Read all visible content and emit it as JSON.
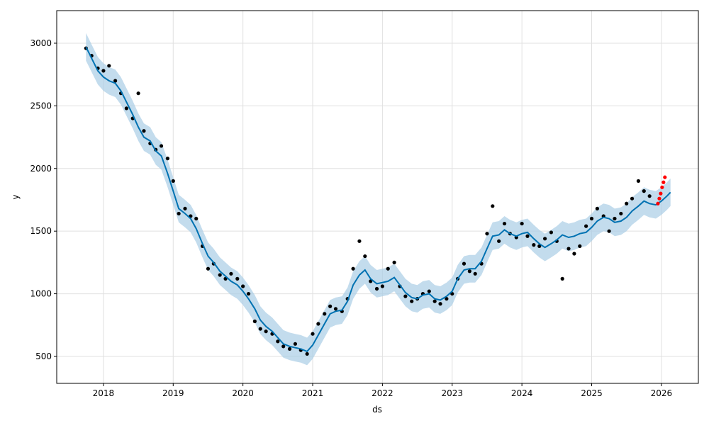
{
  "chart_data": {
    "type": "forecast",
    "xlabel": "ds",
    "ylabel": "y",
    "xlim": [
      2017.33,
      2026.53
    ],
    "xticks": [
      2018,
      2019,
      2020,
      2021,
      2022,
      2023,
      2024,
      2025,
      2026
    ],
    "ylim": [
      285,
      3260
    ],
    "yticks": [
      500,
      1000,
      1500,
      2000,
      2500,
      3000
    ],
    "grid": true,
    "forecast": {
      "color": "#0072b2",
      "band_color": "#a9cde6",
      "x": [
        2017.75,
        2017.83,
        2017.92,
        2018,
        2018.08,
        2018.17,
        2018.25,
        2018.33,
        2018.42,
        2018.5,
        2018.58,
        2018.67,
        2018.75,
        2018.83,
        2018.92,
        2019,
        2019.08,
        2019.17,
        2019.25,
        2019.33,
        2019.42,
        2019.5,
        2019.58,
        2019.67,
        2019.75,
        2019.83,
        2019.92,
        2020,
        2020.08,
        2020.17,
        2020.25,
        2020.33,
        2020.42,
        2020.5,
        2020.58,
        2020.67,
        2020.75,
        2020.83,
        2020.92,
        2021,
        2021.08,
        2021.17,
        2021.25,
        2021.33,
        2021.42,
        2021.5,
        2021.58,
        2021.67,
        2021.75,
        2021.83,
        2021.92,
        2022,
        2022.08,
        2022.17,
        2022.25,
        2022.33,
        2022.42,
        2022.5,
        2022.58,
        2022.67,
        2022.75,
        2022.83,
        2022.92,
        2023,
        2023.08,
        2023.17,
        2023.25,
        2023.33,
        2023.42,
        2023.5,
        2023.58,
        2023.67,
        2023.75,
        2023.83,
        2023.92,
        2024,
        2024.08,
        2024.17,
        2024.25,
        2024.33,
        2024.42,
        2024.5,
        2024.58,
        2024.67,
        2024.75,
        2024.83,
        2024.92,
        2025,
        2025.08,
        2025.17,
        2025.25,
        2025.33,
        2025.42,
        2025.5,
        2025.58,
        2025.67,
        2025.75,
        2025.83,
        2025.92,
        2026,
        2026.08,
        2026.13
      ],
      "values": [
        2970,
        2880,
        2780,
        2730,
        2700,
        2680,
        2620,
        2530,
        2430,
        2330,
        2250,
        2220,
        2140,
        2100,
        1960,
        1820,
        1680,
        1640,
        1600,
        1520,
        1400,
        1300,
        1250,
        1180,
        1140,
        1100,
        1070,
        1020,
        960,
        880,
        790,
        740,
        700,
        650,
        600,
        580,
        570,
        560,
        540,
        590,
        670,
        760,
        840,
        860,
        870,
        940,
        1070,
        1150,
        1190,
        1120,
        1080,
        1090,
        1100,
        1130,
        1070,
        1010,
        970,
        960,
        990,
        1000,
        960,
        950,
        980,
        1020,
        1120,
        1190,
        1200,
        1200,
        1260,
        1360,
        1460,
        1470,
        1510,
        1480,
        1460,
        1480,
        1490,
        1440,
        1400,
        1370,
        1400,
        1430,
        1470,
        1450,
        1460,
        1480,
        1490,
        1530,
        1580,
        1610,
        1600,
        1570,
        1580,
        1610,
        1660,
        1700,
        1740,
        1720,
        1710,
        1740,
        1780,
        1810
      ],
      "lower": [
        2860,
        2770,
        2670,
        2620,
        2590,
        2570,
        2510,
        2420,
        2320,
        2220,
        2140,
        2110,
        2030,
        1990,
        1850,
        1710,
        1570,
        1530,
        1490,
        1410,
        1290,
        1190,
        1140,
        1070,
        1030,
        990,
        960,
        910,
        850,
        770,
        680,
        630,
        590,
        540,
        490,
        470,
        460,
        450,
        430,
        480,
        560,
        650,
        730,
        750,
        760,
        830,
        960,
        1040,
        1080,
        1010,
        970,
        980,
        990,
        1020,
        960,
        900,
        860,
        850,
        880,
        890,
        850,
        840,
        870,
        910,
        1010,
        1080,
        1090,
        1090,
        1150,
        1250,
        1350,
        1360,
        1400,
        1370,
        1350,
        1370,
        1380,
        1330,
        1290,
        1260,
        1290,
        1320,
        1360,
        1340,
        1350,
        1370,
        1380,
        1420,
        1470,
        1500,
        1490,
        1460,
        1470,
        1500,
        1550,
        1590,
        1630,
        1610,
        1600,
        1630,
        1670,
        1700
      ],
      "upper": [
        3080,
        2990,
        2890,
        2840,
        2810,
        2790,
        2730,
        2640,
        2540,
        2440,
        2360,
        2330,
        2250,
        2210,
        2070,
        1930,
        1790,
        1750,
        1710,
        1630,
        1510,
        1410,
        1360,
        1290,
        1250,
        1210,
        1180,
        1130,
        1070,
        990,
        900,
        850,
        810,
        760,
        710,
        690,
        680,
        670,
        650,
        700,
        780,
        870,
        950,
        970,
        980,
        1050,
        1180,
        1260,
        1300,
        1230,
        1190,
        1200,
        1210,
        1240,
        1180,
        1120,
        1080,
        1070,
        1100,
        1110,
        1070,
        1060,
        1090,
        1130,
        1230,
        1300,
        1310,
        1310,
        1370,
        1470,
        1570,
        1580,
        1620,
        1590,
        1570,
        1590,
        1600,
        1550,
        1510,
        1480,
        1510,
        1540,
        1580,
        1560,
        1570,
        1590,
        1600,
        1640,
        1690,
        1720,
        1710,
        1680,
        1690,
        1720,
        1770,
        1810,
        1850,
        1830,
        1820,
        1850,
        1890,
        1920
      ]
    },
    "observed": {
      "color": "#000000",
      "x": [
        2017.75,
        2017.83,
        2017.92,
        2018,
        2018.08,
        2018.17,
        2018.25,
        2018.33,
        2018.42,
        2018.5,
        2018.58,
        2018.67,
        2018.75,
        2018.83,
        2018.92,
        2019,
        2019.08,
        2019.17,
        2019.25,
        2019.33,
        2019.42,
        2019.5,
        2019.58,
        2019.67,
        2019.75,
        2019.83,
        2019.92,
        2020,
        2020.08,
        2020.17,
        2020.25,
        2020.33,
        2020.42,
        2020.5,
        2020.58,
        2020.67,
        2020.75,
        2020.83,
        2020.92,
        2021,
        2021.08,
        2021.17,
        2021.25,
        2021.33,
        2021.42,
        2021.5,
        2021.58,
        2021.67,
        2021.75,
        2021.83,
        2021.92,
        2022,
        2022.08,
        2022.17,
        2022.25,
        2022.33,
        2022.42,
        2022.5,
        2022.58,
        2022.67,
        2022.75,
        2022.83,
        2022.92,
        2023,
        2023.08,
        2023.17,
        2023.25,
        2023.33,
        2023.42,
        2023.5,
        2023.58,
        2023.67,
        2023.75,
        2023.83,
        2023.92,
        2024,
        2024.08,
        2024.17,
        2024.25,
        2024.33,
        2024.42,
        2024.5,
        2024.58,
        2024.67,
        2024.75,
        2024.83,
        2024.92,
        2025,
        2025.08,
        2025.17,
        2025.25,
        2025.33,
        2025.42,
        2025.5,
        2025.58,
        2025.67,
        2025.75,
        2025.83
      ],
      "values": [
        2960,
        2900,
        2800,
        2780,
        2820,
        2700,
        2600,
        2480,
        2400,
        2600,
        2300,
        2200,
        2150,
        2180,
        2080,
        1900,
        1640,
        1680,
        1620,
        1600,
        1380,
        1200,
        1240,
        1150,
        1120,
        1160,
        1120,
        1060,
        1000,
        780,
        720,
        700,
        680,
        620,
        580,
        560,
        600,
        550,
        520,
        680,
        760,
        840,
        900,
        880,
        860,
        960,
        1200,
        1420,
        1300,
        1100,
        1040,
        1060,
        1200,
        1250,
        1060,
        980,
        940,
        960,
        1000,
        1020,
        940,
        920,
        960,
        1000,
        1120,
        1240,
        1180,
        1160,
        1240,
        1480,
        1700,
        1420,
        1560,
        1480,
        1450,
        1560,
        1460,
        1390,
        1380,
        1440,
        1490,
        1420,
        1120,
        1360,
        1320,
        1380,
        1540,
        1600,
        1680,
        1620,
        1500,
        1600,
        1640,
        1720,
        1760,
        1900,
        1820,
        1780
      ]
    },
    "recent": {
      "color": "#ff0000",
      "x": [
        2025.95,
        2025.97,
        2025.99,
        2026.01,
        2026.03,
        2026.05
      ],
      "values": [
        1720,
        1760,
        1800,
        1850,
        1890,
        1930
      ]
    }
  }
}
